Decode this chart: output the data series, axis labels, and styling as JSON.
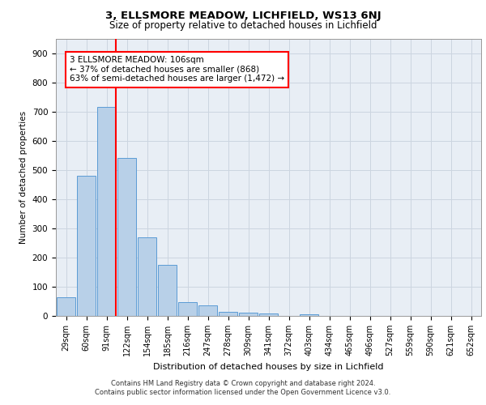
{
  "title_line1": "3, ELLSMORE MEADOW, LICHFIELD, WS13 6NJ",
  "title_line2": "Size of property relative to detached houses in Lichfield",
  "xlabel": "Distribution of detached houses by size in Lichfield",
  "ylabel": "Number of detached properties",
  "categories": [
    "29sqm",
    "60sqm",
    "91sqm",
    "122sqm",
    "154sqm",
    "185sqm",
    "216sqm",
    "247sqm",
    "278sqm",
    "309sqm",
    "341sqm",
    "372sqm",
    "403sqm",
    "434sqm",
    "465sqm",
    "496sqm",
    "527sqm",
    "559sqm",
    "590sqm",
    "621sqm",
    "652sqm"
  ],
  "values": [
    65,
    480,
    715,
    540,
    270,
    175,
    48,
    35,
    15,
    12,
    8,
    0,
    5,
    0,
    0,
    0,
    0,
    0,
    0,
    0,
    0
  ],
  "bar_color": "#b8d0e8",
  "bar_edge_color": "#5b9bd5",
  "red_line_index": 2,
  "annotation_text": "3 ELLSMORE MEADOW: 106sqm\n← 37% of detached houses are smaller (868)\n63% of semi-detached houses are larger (1,472) →",
  "annotation_box_color": "white",
  "annotation_box_edge_color": "red",
  "ylim": [
    0,
    950
  ],
  "yticks": [
    0,
    100,
    200,
    300,
    400,
    500,
    600,
    700,
    800,
    900
  ],
  "grid_color": "#ccd5e0",
  "background_color": "#e8eef5",
  "footnote_line1": "Contains HM Land Registry data © Crown copyright and database right 2024.",
  "footnote_line2": "Contains public sector information licensed under the Open Government Licence v3.0."
}
